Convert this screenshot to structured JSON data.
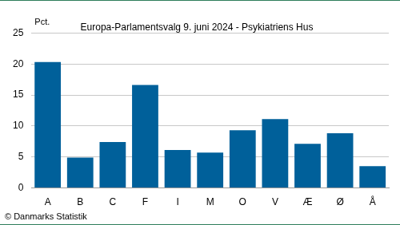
{
  "chart_data": {
    "type": "bar",
    "title": "Europa-Parlamentsvalg 9. juni 2024 - Psykiatriens Hus",
    "ylabel": "Pct.",
    "annotations": [
      "© Danmarks Statistik"
    ],
    "categories": [
      "A",
      "B",
      "C",
      "F",
      "I",
      "M",
      "O",
      "V",
      "Æ",
      "Ø",
      "Å"
    ],
    "values": [
      20.3,
      4.9,
      7.4,
      16.6,
      6.1,
      5.7,
      9.3,
      11.1,
      7.1,
      8.8,
      3.5
    ],
    "color": "#00609a",
    "ylim": [
      0,
      25
    ],
    "yticks": [
      0,
      5,
      10,
      15,
      20,
      25
    ],
    "grid": true
  }
}
